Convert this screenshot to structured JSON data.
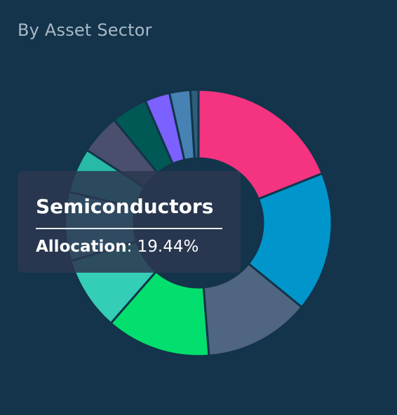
{
  "title": "By Asset Sector",
  "tooltip": {
    "sector": "Semiconductors",
    "key": "Allocation",
    "separator": ": ",
    "value": "19.44%"
  },
  "chart_data": {
    "type": "pie",
    "variant": "donut",
    "title": "By Asset Sector",
    "legend": "none",
    "slices": [
      {
        "name": "Semiconductors",
        "value": 19.44,
        "color": "#f43381"
      },
      {
        "name": "",
        "value": 17.4,
        "color": "#0096cc"
      },
      {
        "name": "",
        "value": 13.2,
        "color": "#4f6581"
      },
      {
        "name": "",
        "value": 13.0,
        "color": "#03df6e"
      },
      {
        "name": "",
        "value": 9.2,
        "color": "#34cdb6"
      },
      {
        "name": "",
        "value": 8.6,
        "color": "#4bb9c3"
      },
      {
        "name": "",
        "value": 5.6,
        "color": "#28baa7"
      },
      {
        "name": "",
        "value": 5.0,
        "color": "#4a4f6e"
      },
      {
        "name": "",
        "value": 4.5,
        "color": "#015955"
      },
      {
        "name": "",
        "value": 3.1,
        "color": "#7b61ff"
      },
      {
        "name": "",
        "value": 2.6,
        "color": "#4682b4"
      },
      {
        "name": "",
        "value": 1.0,
        "color": "#2e5f7a"
      }
    ]
  }
}
